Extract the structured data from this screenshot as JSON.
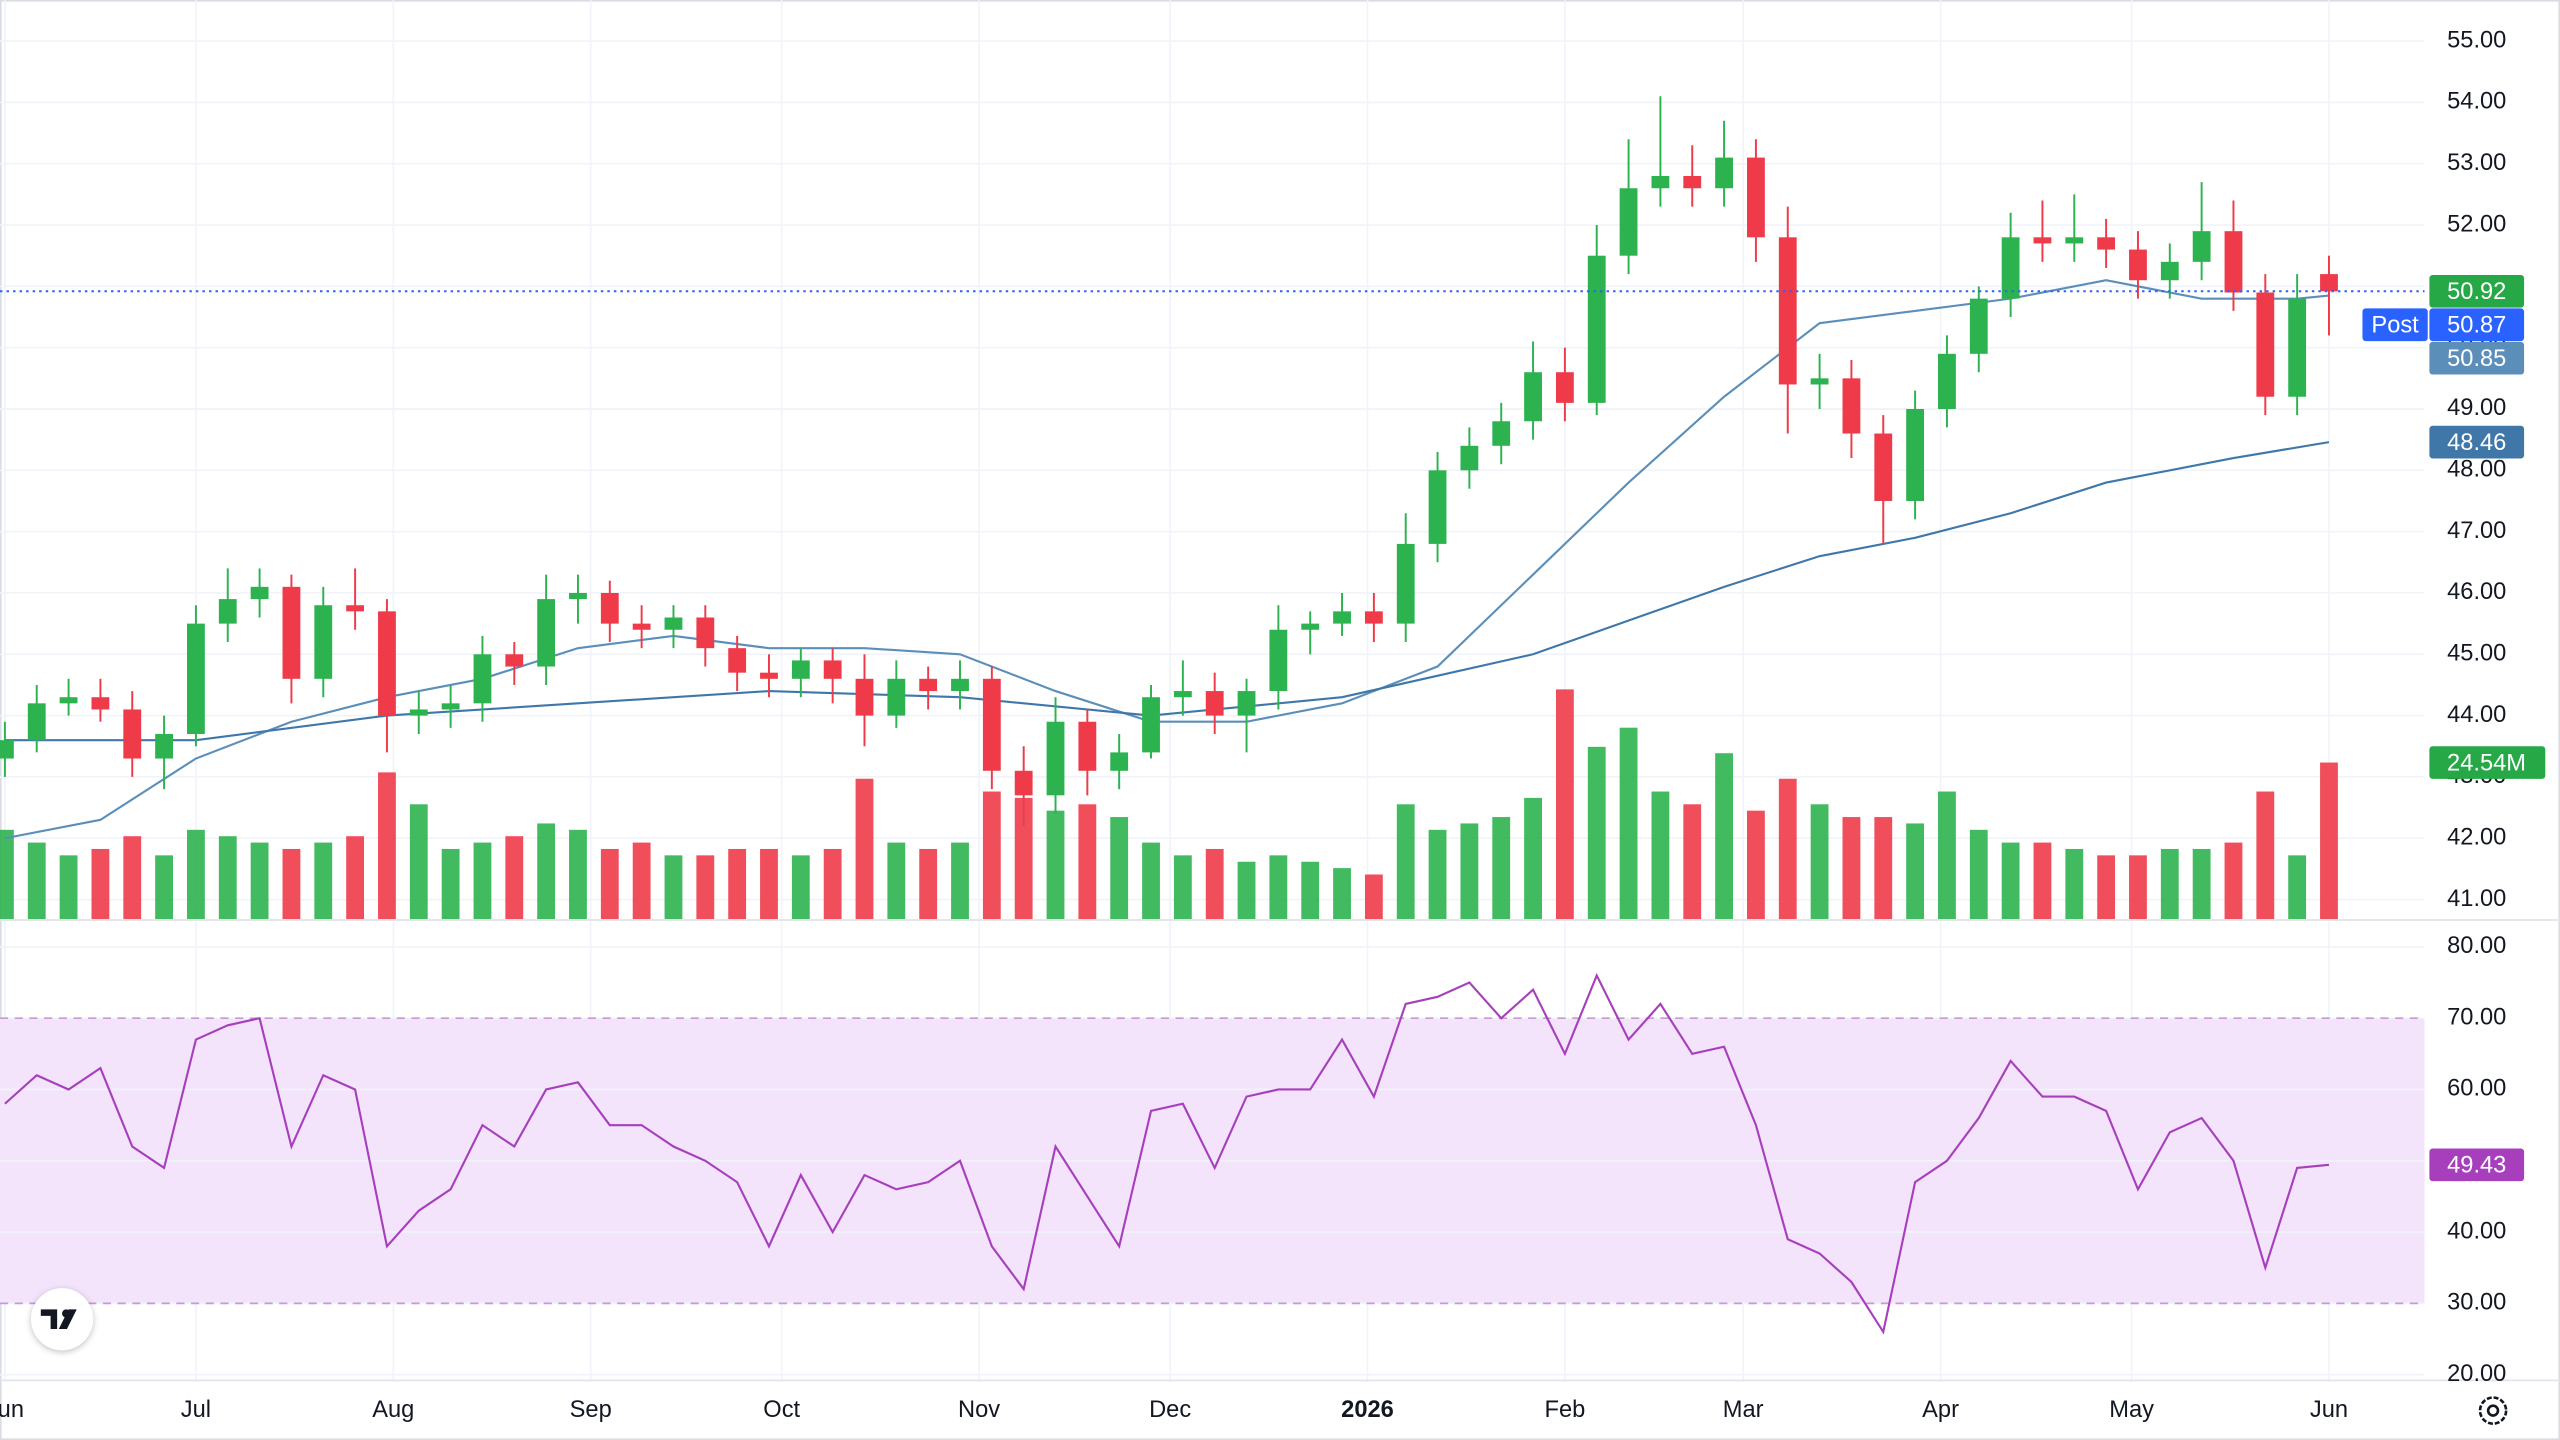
{
  "chart_data": [
    {
      "type": "candlestick",
      "x": [
        0,
        5,
        10,
        15,
        20,
        25,
        30,
        35,
        40,
        45,
        50,
        55,
        60,
        65,
        70,
        75,
        80,
        85,
        90,
        95,
        100,
        105,
        110,
        115,
        120,
        125,
        130,
        135,
        140,
        145,
        150,
        155,
        160,
        165,
        170,
        175,
        180,
        185,
        190,
        195,
        200,
        205,
        210,
        215,
        220,
        225,
        230,
        235,
        240,
        245,
        250,
        255,
        260,
        265,
        270,
        275,
        280,
        285,
        290,
        295,
        300,
        305,
        310,
        315,
        320,
        325,
        330,
        335,
        340,
        345,
        350,
        355,
        360,
        365
      ],
      "open": [
        43.3,
        43.6,
        44.2,
        44.3,
        44.1,
        43.3,
        43.7,
        45.5,
        45.9,
        46.1,
        44.6,
        45.8,
        45.7,
        44.0,
        44.1,
        44.2,
        45.0,
        44.8,
        45.9,
        46.0,
        45.5,
        45.4,
        45.6,
        45.1,
        44.7,
        44.6,
        44.9,
        44.6,
        44.0,
        44.6,
        44.4,
        44.6,
        43.1,
        42.7,
        43.9,
        43.1,
        43.4,
        44.3,
        44.4,
        44.0,
        44.4,
        45.4,
        45.5,
        45.7,
        45.5,
        46.8,
        48.0,
        48.4,
        48.8,
        49.6,
        49.1,
        51.5,
        52.6,
        52.8,
        52.6,
        53.1,
        51.8,
        49.4,
        49.5,
        48.6,
        47.5,
        49.0,
        49.9,
        50.8,
        51.8,
        51.7,
        51.8,
        51.6,
        51.1,
        51.4,
        51.9,
        50.9,
        49.2,
        51.2
      ],
      "high": [
        43.9,
        44.5,
        44.6,
        44.6,
        44.4,
        44.0,
        45.8,
        46.4,
        46.4,
        46.3,
        46.1,
        46.4,
        45.9,
        44.4,
        44.5,
        45.3,
        45.2,
        46.3,
        46.3,
        46.2,
        45.8,
        45.8,
        45.8,
        45.3,
        45.0,
        45.1,
        45.1,
        45.0,
        44.9,
        44.8,
        44.9,
        44.8,
        43.5,
        44.3,
        44.1,
        43.7,
        44.5,
        44.9,
        44.7,
        44.6,
        45.8,
        45.7,
        46.0,
        46.0,
        47.3,
        48.3,
        48.7,
        49.1,
        50.1,
        50.0,
        52.0,
        53.4,
        54.1,
        53.3,
        53.7,
        53.4,
        52.3,
        49.9,
        49.8,
        48.9,
        49.3,
        50.2,
        51.0,
        52.2,
        52.4,
        52.5,
        52.1,
        51.9,
        51.7,
        52.7,
        52.4,
        51.2,
        51.2,
        51.5
      ],
      "low": [
        43.0,
        43.4,
        44.0,
        43.9,
        43.0,
        42.8,
        43.5,
        45.2,
        45.6,
        44.2,
        44.3,
        45.4,
        43.4,
        43.7,
        43.8,
        43.9,
        44.5,
        44.5,
        45.5,
        45.2,
        45.1,
        45.1,
        44.8,
        44.4,
        44.3,
        44.3,
        44.2,
        43.5,
        43.8,
        44.1,
        44.1,
        42.8,
        42.2,
        42.4,
        42.7,
        42.8,
        43.3,
        44.0,
        43.7,
        43.4,
        44.1,
        45.0,
        45.3,
        45.2,
        45.2,
        46.5,
        47.7,
        48.1,
        48.5,
        48.8,
        48.9,
        51.2,
        52.3,
        52.3,
        52.3,
        51.4,
        48.6,
        49.0,
        48.2,
        46.8,
        47.2,
        48.7,
        49.6,
        50.5,
        51.4,
        51.4,
        51.3,
        50.8,
        50.8,
        51.1,
        50.6,
        48.9,
        48.9,
        50.2
      ],
      "close": [
        43.6,
        44.2,
        44.3,
        44.1,
        43.3,
        43.7,
        45.5,
        45.9,
        46.1,
        44.6,
        45.8,
        45.7,
        44.0,
        44.1,
        44.2,
        45.0,
        44.8,
        45.9,
        46.0,
        45.5,
        45.4,
        45.6,
        45.1,
        44.7,
        44.6,
        44.9,
        44.6,
        44.0,
        44.6,
        44.4,
        44.6,
        43.1,
        42.7,
        43.9,
        43.1,
        43.4,
        44.3,
        44.4,
        44.0,
        44.4,
        45.4,
        45.5,
        45.7,
        45.5,
        46.8,
        48.0,
        48.4,
        48.8,
        49.6,
        49.1,
        51.5,
        52.6,
        52.8,
        52.6,
        53.1,
        51.8,
        49.4,
        49.5,
        48.6,
        47.5,
        49.0,
        49.9,
        50.8,
        51.8,
        51.7,
        51.8,
        51.6,
        51.1,
        51.4,
        51.9,
        50.9,
        49.2,
        50.8,
        50.92
      ],
      "up_color": "#2cb34f",
      "down_color": "#ef3b49",
      "last_color": "#26a847",
      "post_market": {
        "label": "Post",
        "value": 50.87,
        "color": "#2962ff"
      },
      "volume": {
        "values": [
          14,
          12,
          10,
          11,
          13,
          10,
          14,
          13,
          12,
          11,
          12,
          13,
          23,
          18,
          11,
          12,
          13,
          15,
          14,
          11,
          12,
          10,
          10,
          11,
          11,
          10,
          11,
          22,
          12,
          11,
          12,
          20,
          19,
          17,
          18,
          16,
          12,
          10,
          11,
          9,
          10,
          9,
          8,
          7,
          18,
          14,
          15,
          16,
          19,
          36,
          27,
          30,
          20,
          18,
          26,
          17,
          22,
          18,
          16,
          16,
          15,
          20,
          14,
          12,
          12,
          11,
          10,
          10,
          11,
          11,
          12,
          20,
          10,
          24.54
        ],
        "last_value_label": "24.54M",
        "ylim": [
          0,
          144
        ]
      },
      "moving_averages": [
        {
          "color": "#5b8fb9",
          "x": [
            0,
            15,
            30,
            45,
            60,
            75,
            90,
            105,
            120,
            135,
            150,
            165,
            180,
            195,
            210,
            225,
            240,
            255,
            270,
            285,
            300,
            315,
            330,
            345,
            360,
            365
          ],
          "values": [
            42.0,
            42.3,
            43.3,
            43.9,
            44.3,
            44.6,
            45.1,
            45.3,
            45.1,
            45.1,
            45.0,
            44.4,
            43.9,
            43.9,
            44.2,
            44.8,
            46.3,
            47.8,
            49.2,
            50.4,
            50.6,
            50.8,
            51.1,
            50.8,
            50.8,
            50.85
          ]
        },
        {
          "color": "#3f78a8",
          "x": [
            0,
            30,
            60,
            90,
            120,
            150,
            180,
            210,
            240,
            270,
            285,
            300,
            315,
            330,
            350,
            365
          ],
          "values": [
            43.6,
            43.6,
            44.0,
            44.2,
            44.4,
            44.3,
            44.0,
            44.3,
            45.0,
            46.1,
            46.6,
            46.9,
            47.3,
            47.8,
            48.2,
            48.46
          ]
        }
      ],
      "xlim": [
        -0.77,
        380
      ],
      "ylim": [
        40.68,
        55.67
      ],
      "yticks": [
        {
          "value": 41,
          "label": "41.00"
        },
        {
          "value": 42,
          "label": "42.00"
        },
        {
          "value": 43,
          "label": "43.00"
        },
        {
          "value": 44,
          "label": "44.00"
        },
        {
          "value": 45,
          "label": "45.00"
        },
        {
          "value": 46,
          "label": "46.00"
        },
        {
          "value": 47,
          "label": "47.00"
        },
        {
          "value": 48,
          "label": "48.00"
        },
        {
          "value": 49,
          "label": "49.00"
        },
        {
          "value": 50,
          "label": "50.00"
        },
        {
          "value": 51,
          "label": "51.00"
        },
        {
          "value": 52,
          "label": "52.00"
        },
        {
          "value": 53,
          "label": "53.00"
        },
        {
          "value": 54,
          "label": "54.00"
        },
        {
          "value": 55,
          "label": "55.00"
        }
      ],
      "xticks": [
        {
          "value": 0,
          "label": "Jun"
        },
        {
          "value": 30,
          "label": "Jul"
        },
        {
          "value": 61,
          "label": "Aug"
        },
        {
          "value": 92,
          "label": "Sep"
        },
        {
          "value": 122,
          "label": "Oct"
        },
        {
          "value": 153,
          "label": "Nov"
        },
        {
          "value": 183,
          "label": "Dec"
        },
        {
          "value": 214,
          "label": "2026"
        },
        {
          "value": 245,
          "label": "Feb"
        },
        {
          "value": 273,
          "label": "Mar"
        },
        {
          "value": 304,
          "label": "Apr"
        },
        {
          "value": 334,
          "label": "May"
        },
        {
          "value": 365,
          "label": "Jun"
        }
      ],
      "grid": true
    },
    {
      "type": "line",
      "x": [
        0,
        5,
        10,
        15,
        20,
        25,
        30,
        35,
        40,
        45,
        50,
        55,
        60,
        65,
        70,
        75,
        80,
        85,
        90,
        95,
        100,
        105,
        110,
        115,
        120,
        125,
        130,
        135,
        140,
        145,
        150,
        155,
        160,
        165,
        170,
        175,
        180,
        185,
        190,
        195,
        200,
        205,
        210,
        215,
        220,
        225,
        230,
        235,
        240,
        245,
        250,
        255,
        260,
        265,
        270,
        275,
        280,
        285,
        290,
        295,
        300,
        305,
        310,
        315,
        320,
        325,
        330,
        335,
        340,
        345,
        350,
        355,
        360,
        365
      ],
      "values": [
        58,
        62,
        60,
        63,
        52,
        49,
        67,
        69,
        70,
        52,
        62,
        60,
        38,
        43,
        46,
        55,
        52,
        60,
        61,
        55,
        55,
        52,
        50,
        47,
        38,
        48,
        40,
        48,
        46,
        47,
        50,
        38,
        32,
        52,
        45,
        38,
        57,
        58,
        49,
        59,
        60,
        60,
        67,
        59,
        72,
        73,
        75,
        70,
        74,
        65,
        76,
        67,
        72,
        65,
        66,
        55,
        39,
        37,
        33,
        26,
        47,
        50,
        56,
        64,
        59,
        59,
        57,
        46,
        54,
        56,
        50,
        35,
        49,
        49.43
      ],
      "color": "#a73fbd",
      "band": [
        30,
        70
      ],
      "band_color": "#f3e4fc",
      "ylim": [
        19.31,
        83.43
      ],
      "yticks": [
        {
          "value": 20,
          "label": "20.00"
        },
        {
          "value": 30,
          "label": "30.00"
        },
        {
          "value": 40,
          "label": "40.00"
        },
        {
          "value": 50,
          "label": "50.00"
        },
        {
          "value": 60,
          "label": "60.00"
        },
        {
          "value": 70,
          "label": "70.00"
        },
        {
          "value": 80,
          "label": "80.00"
        }
      ],
      "grid": true
    }
  ]
}
